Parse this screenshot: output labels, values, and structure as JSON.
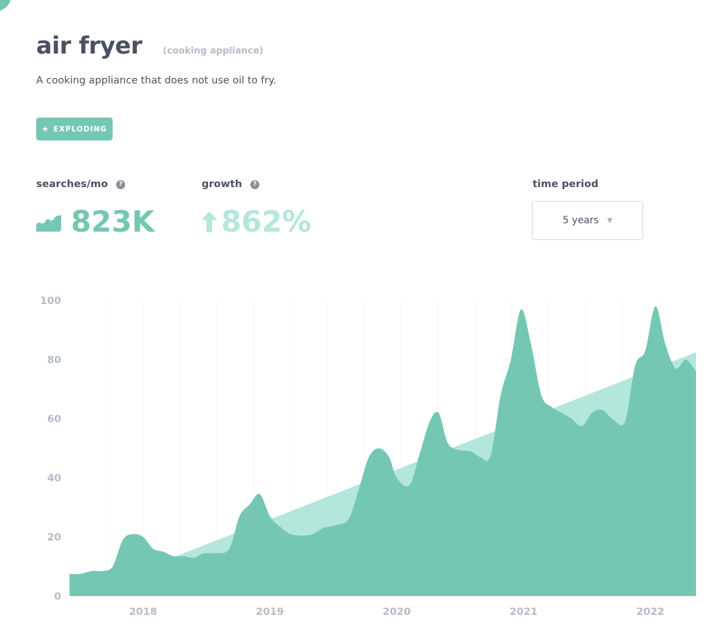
{
  "header": {
    "title": "air fryer",
    "subtitle": "(cooking appliance)",
    "description": "A cooking appliance that does not use oil to fry."
  },
  "badge": {
    "icon": "star-icon",
    "label": "EXPLODING"
  },
  "stats": {
    "searches": {
      "label": "searches/mo",
      "value": "823K",
      "icon": "mini-area-chart-icon"
    },
    "growth": {
      "label": "growth",
      "value": "862%",
      "icon": "arrow-up-icon"
    }
  },
  "time_period": {
    "label": "time period",
    "selected": "5 years"
  },
  "colors": {
    "accent": "#74c7b3",
    "trend": "#b4e7db",
    "text": "#4a5260",
    "muted": "#b5bcc5"
  },
  "chart_data": {
    "type": "area",
    "ylim": [
      0,
      100
    ],
    "y_ticks": [
      0,
      20,
      40,
      60,
      80,
      100
    ],
    "x_ticks": [
      "2018",
      "2019",
      "2020",
      "2021",
      "2022"
    ],
    "grid": "vertical",
    "series": [
      {
        "values": [
          [
            2017.42,
            7.5
          ],
          [
            2017.5,
            7.5
          ],
          [
            2017.6,
            8.5
          ],
          [
            2017.68,
            8.5
          ],
          [
            2017.76,
            10
          ],
          [
            2017.84,
            19
          ],
          [
            2017.92,
            21
          ],
          [
            2018.0,
            20
          ],
          [
            2018.08,
            16
          ],
          [
            2018.16,
            15
          ],
          [
            2018.24,
            13.5
          ],
          [
            2018.32,
            13.5
          ],
          [
            2018.4,
            13
          ],
          [
            2018.48,
            14.5
          ],
          [
            2018.58,
            14.5
          ],
          [
            2018.68,
            16
          ],
          [
            2018.76,
            27
          ],
          [
            2018.84,
            31
          ],
          [
            2018.92,
            34.5
          ],
          [
            2019.0,
            27
          ],
          [
            2019.08,
            23.5
          ],
          [
            2019.16,
            21
          ],
          [
            2019.26,
            20.5
          ],
          [
            2019.34,
            21
          ],
          [
            2019.42,
            23
          ],
          [
            2019.52,
            24
          ],
          [
            2019.62,
            26
          ],
          [
            2019.7,
            36
          ],
          [
            2019.78,
            47
          ],
          [
            2019.86,
            50
          ],
          [
            2019.94,
            47
          ],
          [
            2020.0,
            40
          ],
          [
            2020.1,
            37.5
          ],
          [
            2020.18,
            48
          ],
          [
            2020.26,
            59
          ],
          [
            2020.33,
            62
          ],
          [
            2020.4,
            52
          ],
          [
            2020.48,
            49.5
          ],
          [
            2020.58,
            49
          ],
          [
            2020.66,
            47
          ],
          [
            2020.74,
            47.5
          ],
          [
            2020.82,
            68
          ],
          [
            2020.9,
            80
          ],
          [
            2020.98,
            97
          ],
          [
            2021.06,
            85
          ],
          [
            2021.14,
            68
          ],
          [
            2021.22,
            64
          ],
          [
            2021.3,
            62
          ],
          [
            2021.38,
            60
          ],
          [
            2021.46,
            57.5
          ],
          [
            2021.54,
            62
          ],
          [
            2021.62,
            63
          ],
          [
            2021.7,
            60
          ],
          [
            2021.8,
            59
          ],
          [
            2021.88,
            78
          ],
          [
            2021.96,
            83
          ],
          [
            2022.04,
            98
          ],
          [
            2022.12,
            85
          ],
          [
            2022.2,
            77
          ],
          [
            2022.28,
            80
          ],
          [
            2022.36,
            76
          ]
        ]
      },
      {
        "type": "trend",
        "values": [
          [
            2018.2,
            12.5
          ],
          [
            2022.36,
            82.5
          ]
        ]
      }
    ]
  }
}
